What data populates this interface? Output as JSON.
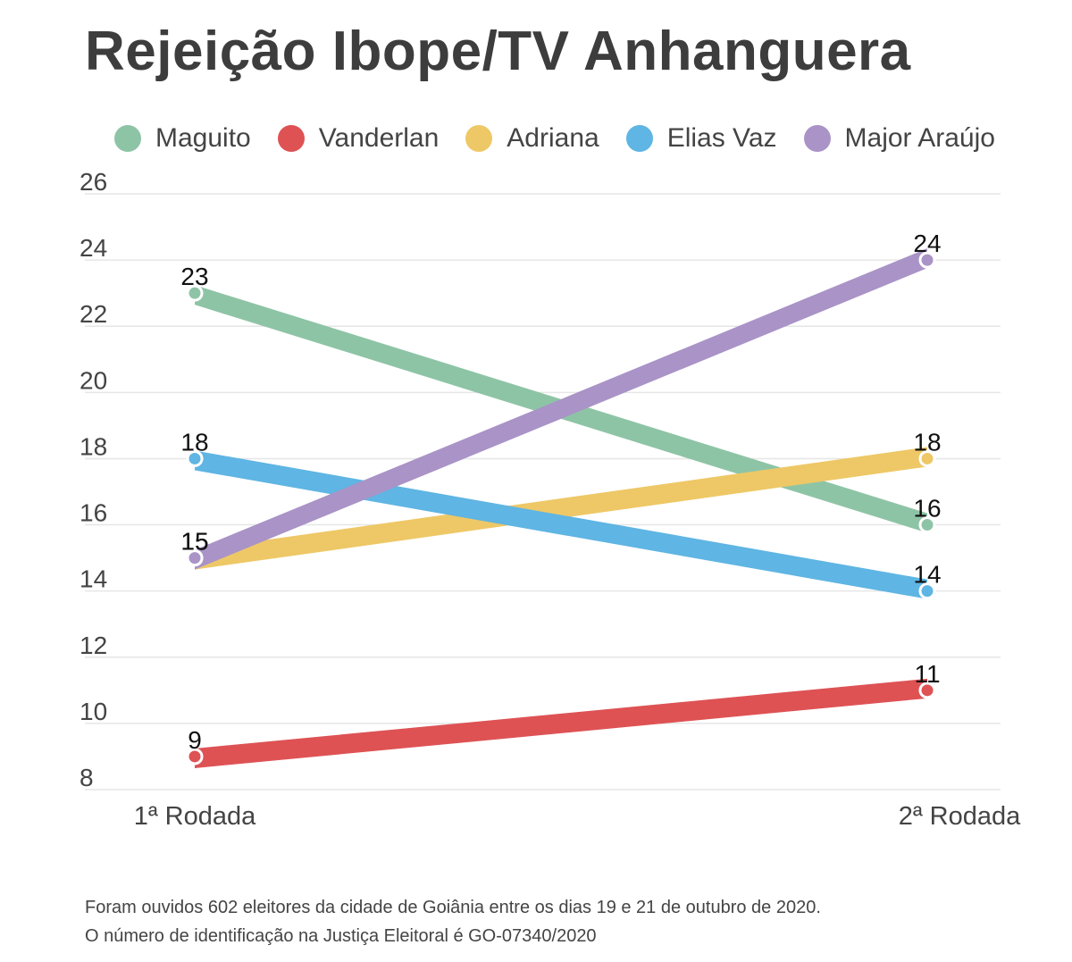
{
  "title": "Rejeição Ibope/TV Anhanguera",
  "colors": {
    "Maguito": "#8ec4a6",
    "Vanderlan": "#de5254",
    "Adriana": "#eec866",
    "Elias Vaz": "#5fb5e3",
    "Major Araújo": "#a993c7",
    "grid": "#e6e6e6",
    "axis_text": "#444444",
    "label_text": "#111111"
  },
  "chart_data": {
    "type": "line",
    "title": "Rejeição Ibope/TV Anhanguera",
    "categories": [
      "1ª Rodada",
      "2ª Rodada"
    ],
    "series": [
      {
        "name": "Maguito",
        "values": [
          23,
          16
        ]
      },
      {
        "name": "Vanderlan",
        "values": [
          9,
          11
        ]
      },
      {
        "name": "Adriana",
        "values": [
          15,
          18
        ]
      },
      {
        "name": "Elias Vaz",
        "values": [
          18,
          14
        ]
      },
      {
        "name": "Major Araújo",
        "values": [
          15,
          24
        ]
      }
    ],
    "yticks": [
      26,
      24,
      22,
      20,
      18,
      16,
      14,
      12,
      10,
      8
    ],
    "ylim": [
      8,
      26
    ],
    "xlabel": "",
    "ylabel": "",
    "legend_position": "top"
  },
  "footnote": {
    "line1": "Foram ouvidos 602 eleitores da cidade de Goiânia entre os dias 19 e 21 de outubro de 2020.",
    "line2": "O número de identificação na Justiça Eleitoral é GO-07340/2020"
  }
}
